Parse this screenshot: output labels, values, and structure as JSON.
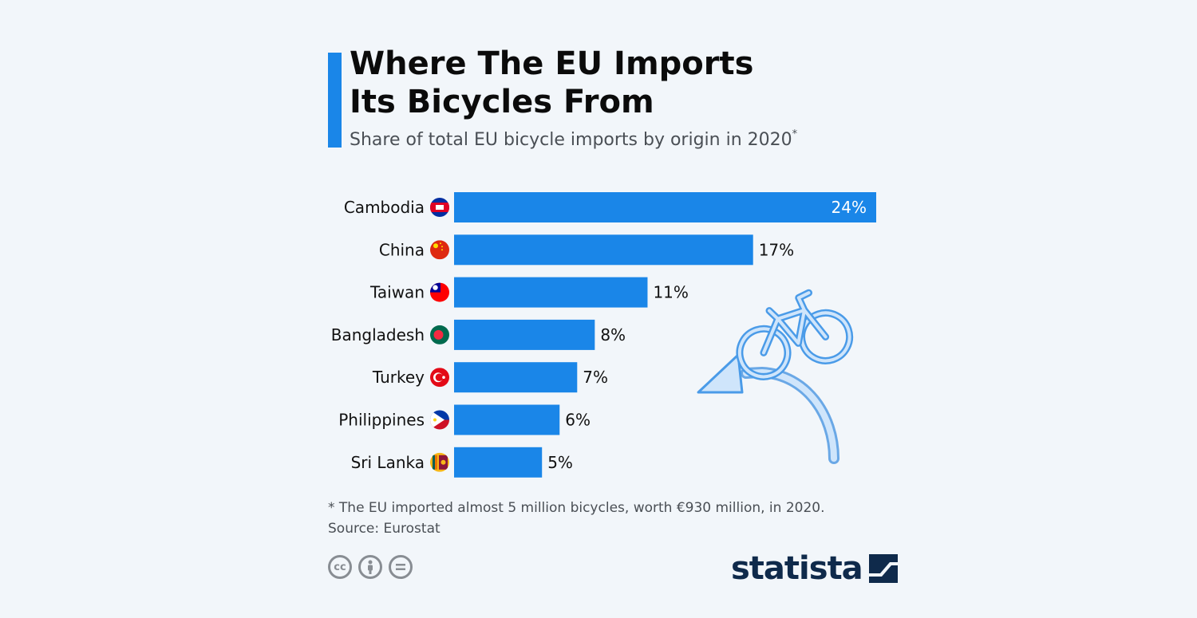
{
  "header": {
    "title_line1": "Where The EU Imports",
    "title_line2": "Its Bicycles From",
    "subtitle": "Share of total EU bicycle imports by origin in 2020",
    "subtitle_marker": "*"
  },
  "chart_data": {
    "type": "bar",
    "orientation": "horizontal",
    "title": "Where The EU Imports Its Bicycles From",
    "subtitle": "Share of total EU bicycle imports by origin in 2020*",
    "categories": [
      "Cambodia",
      "China",
      "Taiwan",
      "Bangladesh",
      "Turkey",
      "Philippines",
      "Sri Lanka"
    ],
    "values": [
      24,
      17,
      11,
      8,
      7,
      6,
      5
    ],
    "value_labels": [
      "24%",
      "17%",
      "11%",
      "8%",
      "7%",
      "6%",
      "5%"
    ],
    "unit": "%",
    "xlim": [
      0,
      24
    ],
    "grid": false,
    "bar_color": "#1a86e8"
  },
  "footer": {
    "note": "* The EU imported almost 5 million bicycles, worth €930 million, in 2020.",
    "source": "Source: Eurostat",
    "brand": "statista",
    "license_icons": [
      "cc-icon",
      "attribution-icon",
      "no-derivatives-icon"
    ]
  },
  "colors": {
    "accent": "#1a86e8",
    "background": "#f2f6fa",
    "brand": "#0f2a4b"
  }
}
